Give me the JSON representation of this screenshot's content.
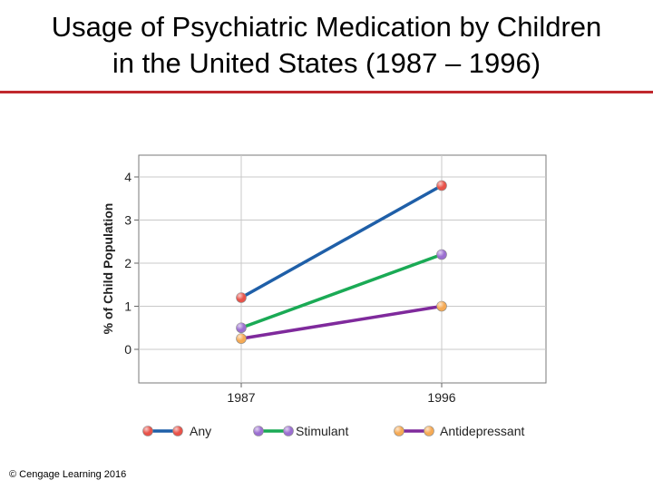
{
  "title_line1": "Usage of Psychiatric Medication by Children",
  "title_line2": "in the United States (1987 – 1996)",
  "copyright": "© Cengage Learning 2016",
  "chart_data": {
    "type": "line",
    "title": "",
    "xlabel": "",
    "ylabel": "% of Child Population",
    "x": [
      "1987",
      "1996"
    ],
    "ylim": [
      -0.6,
      4.4
    ],
    "yticks": [
      "0",
      "1",
      "2",
      "3",
      "4"
    ],
    "grid": true,
    "legend_position": "bottom",
    "series": [
      {
        "name": "Any",
        "values": [
          1.2,
          3.8
        ],
        "line_color": "#1f5fa8",
        "start_marker": "#e8534a",
        "end_marker": "#e8534a"
      },
      {
        "name": "Stimulant",
        "values": [
          0.5,
          2.2
        ],
        "line_color": "#1aaa55",
        "start_marker": "#9b6fd1",
        "end_marker": "#9b6fd1"
      },
      {
        "name": "Antidepressant",
        "values": [
          0.25,
          1.0
        ],
        "line_color": "#7f2a9c",
        "start_marker": "#f5aa55",
        "end_marker": "#f5aa55"
      }
    ]
  }
}
